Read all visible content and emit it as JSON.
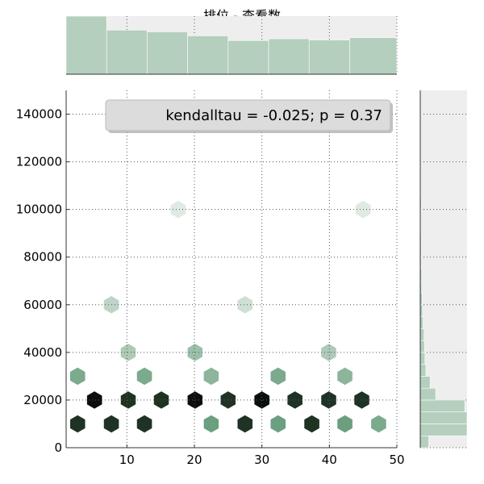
{
  "chart_data": {
    "type": "hexbin",
    "title": "排位 - 查看数",
    "xlabel": "",
    "ylabel": "",
    "xlim": [
      1,
      50
    ],
    "ylim": [
      0,
      150000
    ],
    "xticks": [
      10,
      20,
      30,
      40,
      50
    ],
    "yticks": [
      0,
      20000,
      40000,
      60000,
      80000,
      100000,
      120000,
      140000
    ],
    "xtick_labels": [
      "10",
      "20",
      "30",
      "40",
      "50"
    ],
    "ytick_labels": [
      "0",
      "20000",
      "40000",
      "60000",
      "80000",
      "100000",
      "120000",
      "140000"
    ],
    "grid": true,
    "annotation": "kendalltau = -0.025; p = 0.37",
    "color": "#4a8a62",
    "marginal_x": {
      "type": "histogram",
      "bins": [
        1,
        7,
        13,
        19,
        25,
        31,
        37,
        43,
        50
      ],
      "counts": [
        100,
        76,
        73,
        66,
        58,
        61,
        59,
        63
      ]
    },
    "marginal_y": {
      "type": "histogram",
      "bins": [
        0,
        5000,
        10000,
        15000,
        20000,
        25000,
        30000,
        35000,
        40000,
        45000,
        50000,
        55000,
        60000,
        65000,
        70000,
        75000,
        80000,
        85000,
        90000,
        95000,
        100000,
        105000,
        110000,
        115000,
        120000,
        125000,
        130000,
        135000,
        140000,
        145000,
        150000
      ],
      "counts": [
        18,
        100,
        100,
        95,
        33,
        21,
        12,
        10,
        9,
        8,
        6,
        5,
        4,
        3,
        3,
        2,
        2,
        2,
        1,
        1,
        2,
        1,
        1,
        1,
        1,
        1,
        1,
        1,
        1,
        1
      ]
    },
    "hexbins": [
      {
        "x": 2.7,
        "y": 10000,
        "count": 10
      },
      {
        "x": 7.7,
        "y": 10000,
        "count": 10
      },
      {
        "x": 12.6,
        "y": 10000,
        "count": 10
      },
      {
        "x": 22.5,
        "y": 10000,
        "count": 9
      },
      {
        "x": 27.5,
        "y": 10000,
        "count": 10
      },
      {
        "x": 32.4,
        "y": 10000,
        "count": 9
      },
      {
        "x": 37.4,
        "y": 10000,
        "count": 10
      },
      {
        "x": 42.3,
        "y": 10000,
        "count": 9
      },
      {
        "x": 47.3,
        "y": 10000,
        "count": 8
      },
      {
        "x": 5.2,
        "y": 20000,
        "count": 11
      },
      {
        "x": 10.2,
        "y": 20000,
        "count": 10
      },
      {
        "x": 15.1,
        "y": 20000,
        "count": 10
      },
      {
        "x": 20.1,
        "y": 20000,
        "count": 11
      },
      {
        "x": 25.0,
        "y": 20000,
        "count": 10
      },
      {
        "x": 30.0,
        "y": 20000,
        "count": 11
      },
      {
        "x": 34.9,
        "y": 20000,
        "count": 10
      },
      {
        "x": 39.9,
        "y": 20000,
        "count": 10
      },
      {
        "x": 44.8,
        "y": 20000,
        "count": 10
      },
      {
        "x": 2.7,
        "y": 30000,
        "count": 8
      },
      {
        "x": 12.6,
        "y": 30000,
        "count": 8
      },
      {
        "x": 22.5,
        "y": 30000,
        "count": 7
      },
      {
        "x": 32.4,
        "y": 30000,
        "count": 8
      },
      {
        "x": 42.3,
        "y": 30000,
        "count": 7
      },
      {
        "x": 10.2,
        "y": 40000,
        "count": 5
      },
      {
        "x": 20.1,
        "y": 40000,
        "count": 6
      },
      {
        "x": 39.9,
        "y": 40000,
        "count": 5
      },
      {
        "x": 7.7,
        "y": 60000,
        "count": 4
      },
      {
        "x": 27.5,
        "y": 60000,
        "count": 3
      },
      {
        "x": 17.6,
        "y": 100000,
        "count": 2
      },
      {
        "x": 45.0,
        "y": 100000,
        "count": 2
      }
    ]
  }
}
